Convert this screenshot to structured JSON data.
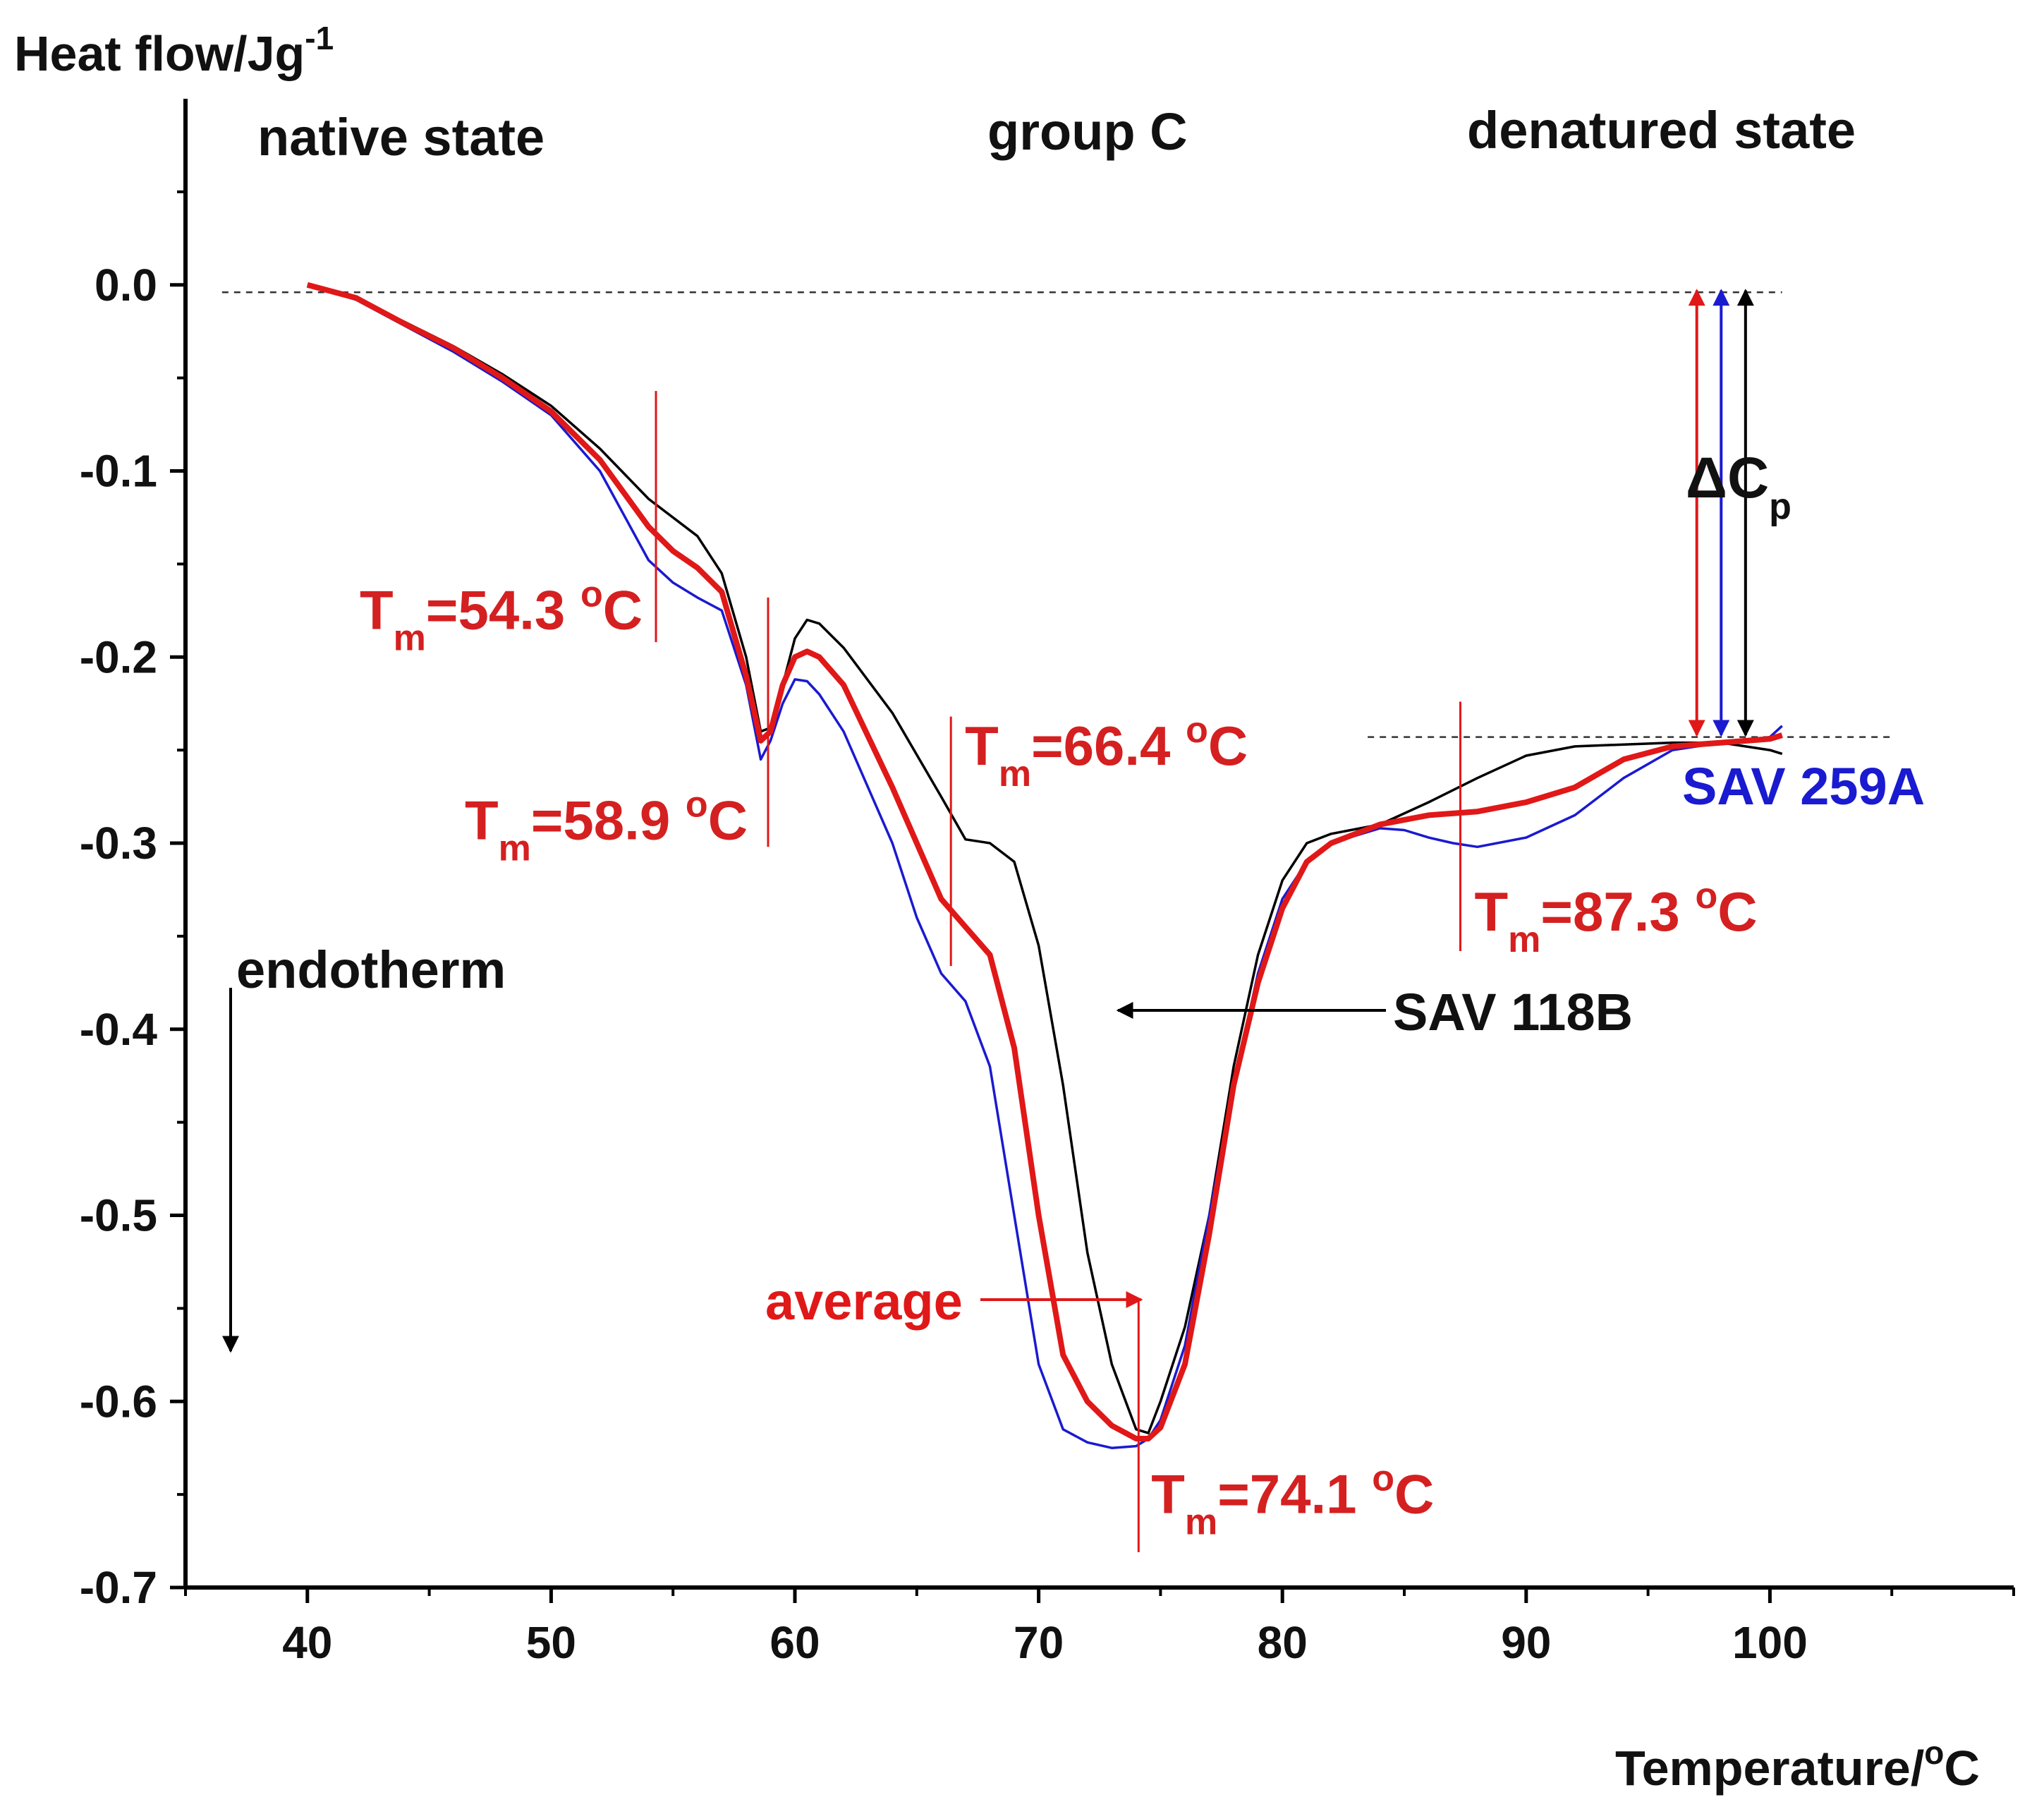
{
  "chart_data": {
    "type": "line",
    "title": "",
    "xlabel": "Temperature/",
    "xlabel_sup": "o",
    "xlabel_tail": "C",
    "ylabel": "Heat flow/Jg",
    "ylabel_sup": "-1",
    "xlim": [
      35,
      110
    ],
    "ylim": [
      -0.7,
      0.1
    ],
    "x_ticks": [
      40,
      50,
      60,
      70,
      80,
      90,
      100
    ],
    "y_ticks": [
      0.0,
      -0.1,
      -0.2,
      -0.3,
      -0.4,
      -0.5,
      -0.6,
      -0.7
    ],
    "y_tick_labels": [
      "0.0",
      "-0.1",
      "-0.2",
      "-0.3",
      "-0.4",
      "-0.5",
      "-0.6",
      "-0.7"
    ],
    "grid": false,
    "series": [
      {
        "name": "SAV 118B",
        "color": "#000000",
        "x": [
          40,
          42,
          44,
          46,
          48,
          50,
          52,
          54,
          56,
          57,
          58,
          58.6,
          59,
          59.5,
          60,
          60.5,
          61,
          62,
          64,
          66,
          67,
          68,
          69,
          70,
          71,
          72,
          73,
          74,
          74.5,
          75,
          76,
          77,
          78,
          79,
          80,
          81,
          82,
          84,
          86,
          88,
          90,
          92,
          94,
          96,
          98,
          100,
          100.5
        ],
        "y": [
          0,
          -0.007,
          -0.02,
          -0.033,
          -0.048,
          -0.065,
          -0.088,
          -0.115,
          -0.135,
          -0.155,
          -0.2,
          -0.24,
          -0.238,
          -0.215,
          -0.19,
          -0.18,
          -0.182,
          -0.195,
          -0.23,
          -0.275,
          -0.298,
          -0.3,
          -0.31,
          -0.355,
          -0.43,
          -0.52,
          -0.58,
          -0.615,
          -0.617,
          -0.6,
          -0.56,
          -0.5,
          -0.42,
          -0.36,
          -0.32,
          -0.3,
          -0.295,
          -0.29,
          -0.278,
          -0.265,
          -0.253,
          -0.248,
          -0.247,
          -0.246,
          -0.246,
          -0.25,
          -0.252
        ]
      },
      {
        "name": "SAV 259A",
        "color": "#1a1ad0",
        "x": [
          40,
          42,
          44,
          46,
          48,
          50,
          52,
          54,
          55,
          56,
          57,
          58,
          58.6,
          59,
          59.5,
          60,
          60.5,
          61,
          62,
          64,
          65,
          66,
          67,
          68,
          69,
          70,
          71,
          72,
          73,
          74,
          74.5,
          75,
          76,
          77,
          78,
          79,
          80,
          81,
          82,
          84,
          85,
          86,
          87,
          88,
          90,
          92,
          94,
          96,
          98,
          100,
          100.5
        ],
        "y": [
          0,
          -0.008,
          -0.022,
          -0.036,
          -0.052,
          -0.07,
          -0.1,
          -0.148,
          -0.16,
          -0.168,
          -0.175,
          -0.215,
          -0.255,
          -0.245,
          -0.225,
          -0.212,
          -0.213,
          -0.22,
          -0.24,
          -0.3,
          -0.34,
          -0.37,
          -0.385,
          -0.42,
          -0.5,
          -0.58,
          -0.615,
          -0.622,
          -0.625,
          -0.624,
          -0.62,
          -0.61,
          -0.57,
          -0.5,
          -0.43,
          -0.37,
          -0.33,
          -0.31,
          -0.3,
          -0.292,
          -0.293,
          -0.297,
          -0.3,
          -0.302,
          -0.297,
          -0.285,
          -0.265,
          -0.25,
          -0.246,
          -0.243,
          -0.237
        ]
      },
      {
        "name": "average",
        "color": "#e01818",
        "x": [
          40,
          42,
          44,
          46,
          48,
          50,
          52,
          54,
          55,
          56,
          57,
          58,
          58.6,
          59,
          59.5,
          60,
          60.5,
          61,
          62,
          64,
          65,
          66,
          67,
          68,
          69,
          70,
          71,
          72,
          73,
          74,
          74.5,
          75,
          76,
          77,
          78,
          79,
          80,
          81,
          82,
          84,
          86,
          88,
          90,
          92,
          94,
          96,
          98,
          100,
          100.5
        ],
        "y": [
          0,
          -0.007,
          -0.021,
          -0.034,
          -0.05,
          -0.068,
          -0.094,
          -0.13,
          -0.143,
          -0.152,
          -0.165,
          -0.21,
          -0.245,
          -0.24,
          -0.215,
          -0.2,
          -0.197,
          -0.2,
          -0.215,
          -0.27,
          -0.3,
          -0.33,
          -0.345,
          -0.36,
          -0.41,
          -0.5,
          -0.575,
          -0.6,
          -0.613,
          -0.62,
          -0.62,
          -0.614,
          -0.58,
          -0.51,
          -0.43,
          -0.375,
          -0.335,
          -0.31,
          -0.3,
          -0.29,
          -0.285,
          -0.283,
          -0.278,
          -0.27,
          -0.255,
          -0.248,
          -0.246,
          -0.244,
          -0.242
        ]
      }
    ],
    "melting_points": [
      {
        "T": 54.3,
        "label_main": "T",
        "label_sub": "m",
        "label_val": "=54.3 ",
        "label_sup": "o",
        "label_unit": "C",
        "y_top": -0.057,
        "y_bottom": -0.192
      },
      {
        "T": 58.9,
        "label_main": "T",
        "label_sub": "m",
        "label_val": "=58.9 ",
        "label_sup": "o",
        "label_unit": "C",
        "y_top": -0.168,
        "y_bottom": -0.302
      },
      {
        "T": 66.4,
        "label_main": "T",
        "label_sub": "m",
        "label_val": "=66.4 ",
        "label_sup": "o",
        "label_unit": "C",
        "y_top": -0.232,
        "y_bottom": -0.366
      },
      {
        "T": 74.1,
        "label_main": "T",
        "label_sub": "m",
        "label_val": "=74.1 ",
        "label_sup": "o",
        "label_unit": "C",
        "y_top": -0.546,
        "y_bottom": -0.681
      },
      {
        "T": 87.3,
        "label_main": "T",
        "label_sub": "m",
        "label_val": "=87.3 ",
        "label_sup": "o",
        "label_unit": "C",
        "y_top": -0.224,
        "y_bottom": -0.358
      }
    ],
    "baselines": [
      {
        "name": "native-baseline",
        "x1": 36.5,
        "x2": 100.5,
        "y": -0.004
      },
      {
        "name": "denatured-baseline",
        "x1": 83.5,
        "x2": 105,
        "y": -0.243
      }
    ],
    "delta_cp_arrows": [
      {
        "x": 97,
        "color": "#e01818"
      },
      {
        "x": 98,
        "color": "#1a1ad0"
      },
      {
        "x": 99,
        "color": "#000000"
      }
    ],
    "annotations": {
      "native_state": "native state",
      "group": "group C",
      "denatured_state": "denatured state",
      "endotherm": "endotherm",
      "delta_cp_main": "ΔC",
      "delta_cp_sub": "p",
      "sav118b": "SAV 118B",
      "sav259a": "SAV 259A",
      "average": "average"
    }
  }
}
